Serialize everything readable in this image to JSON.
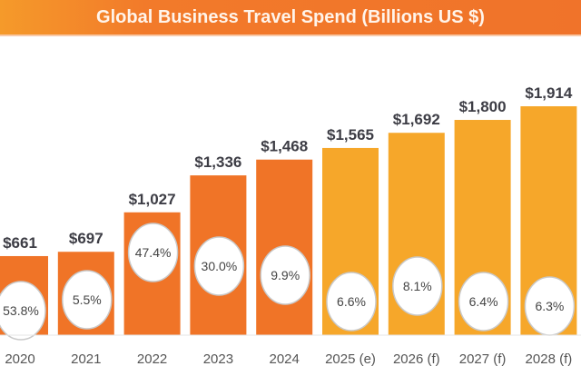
{
  "chart_data": {
    "type": "bar",
    "title": "Global Business Travel Spend (Billions US $)",
    "categories": [
      "2020",
      "2021",
      "2022",
      "2023",
      "2024",
      "2025 (e)",
      "2026 (f)",
      "2027 (f)",
      "2028 (f)"
    ],
    "values": [
      661,
      697,
      1027,
      1336,
      1468,
      1565,
      1692,
      1800,
      1914
    ],
    "value_labels": [
      "$661",
      "$697",
      "$1,027",
      "$1,336",
      "$1,468",
      "$1,565",
      "$1,692",
      "$1,800",
      "$1,914"
    ],
    "growth_labels": [
      "53.8%",
      "5.5%",
      "47.4%",
      "30.0%",
      "9.9%",
      "6.6%",
      "8.1%",
      "6.4%",
      "6.3%"
    ],
    "xlabel": "",
    "ylabel": "",
    "ylim": [
      0,
      1914
    ],
    "grid": false,
    "colors": {
      "actual": "#f07427",
      "forecast": "#f6a72a",
      "header": "#f0732a"
    }
  }
}
